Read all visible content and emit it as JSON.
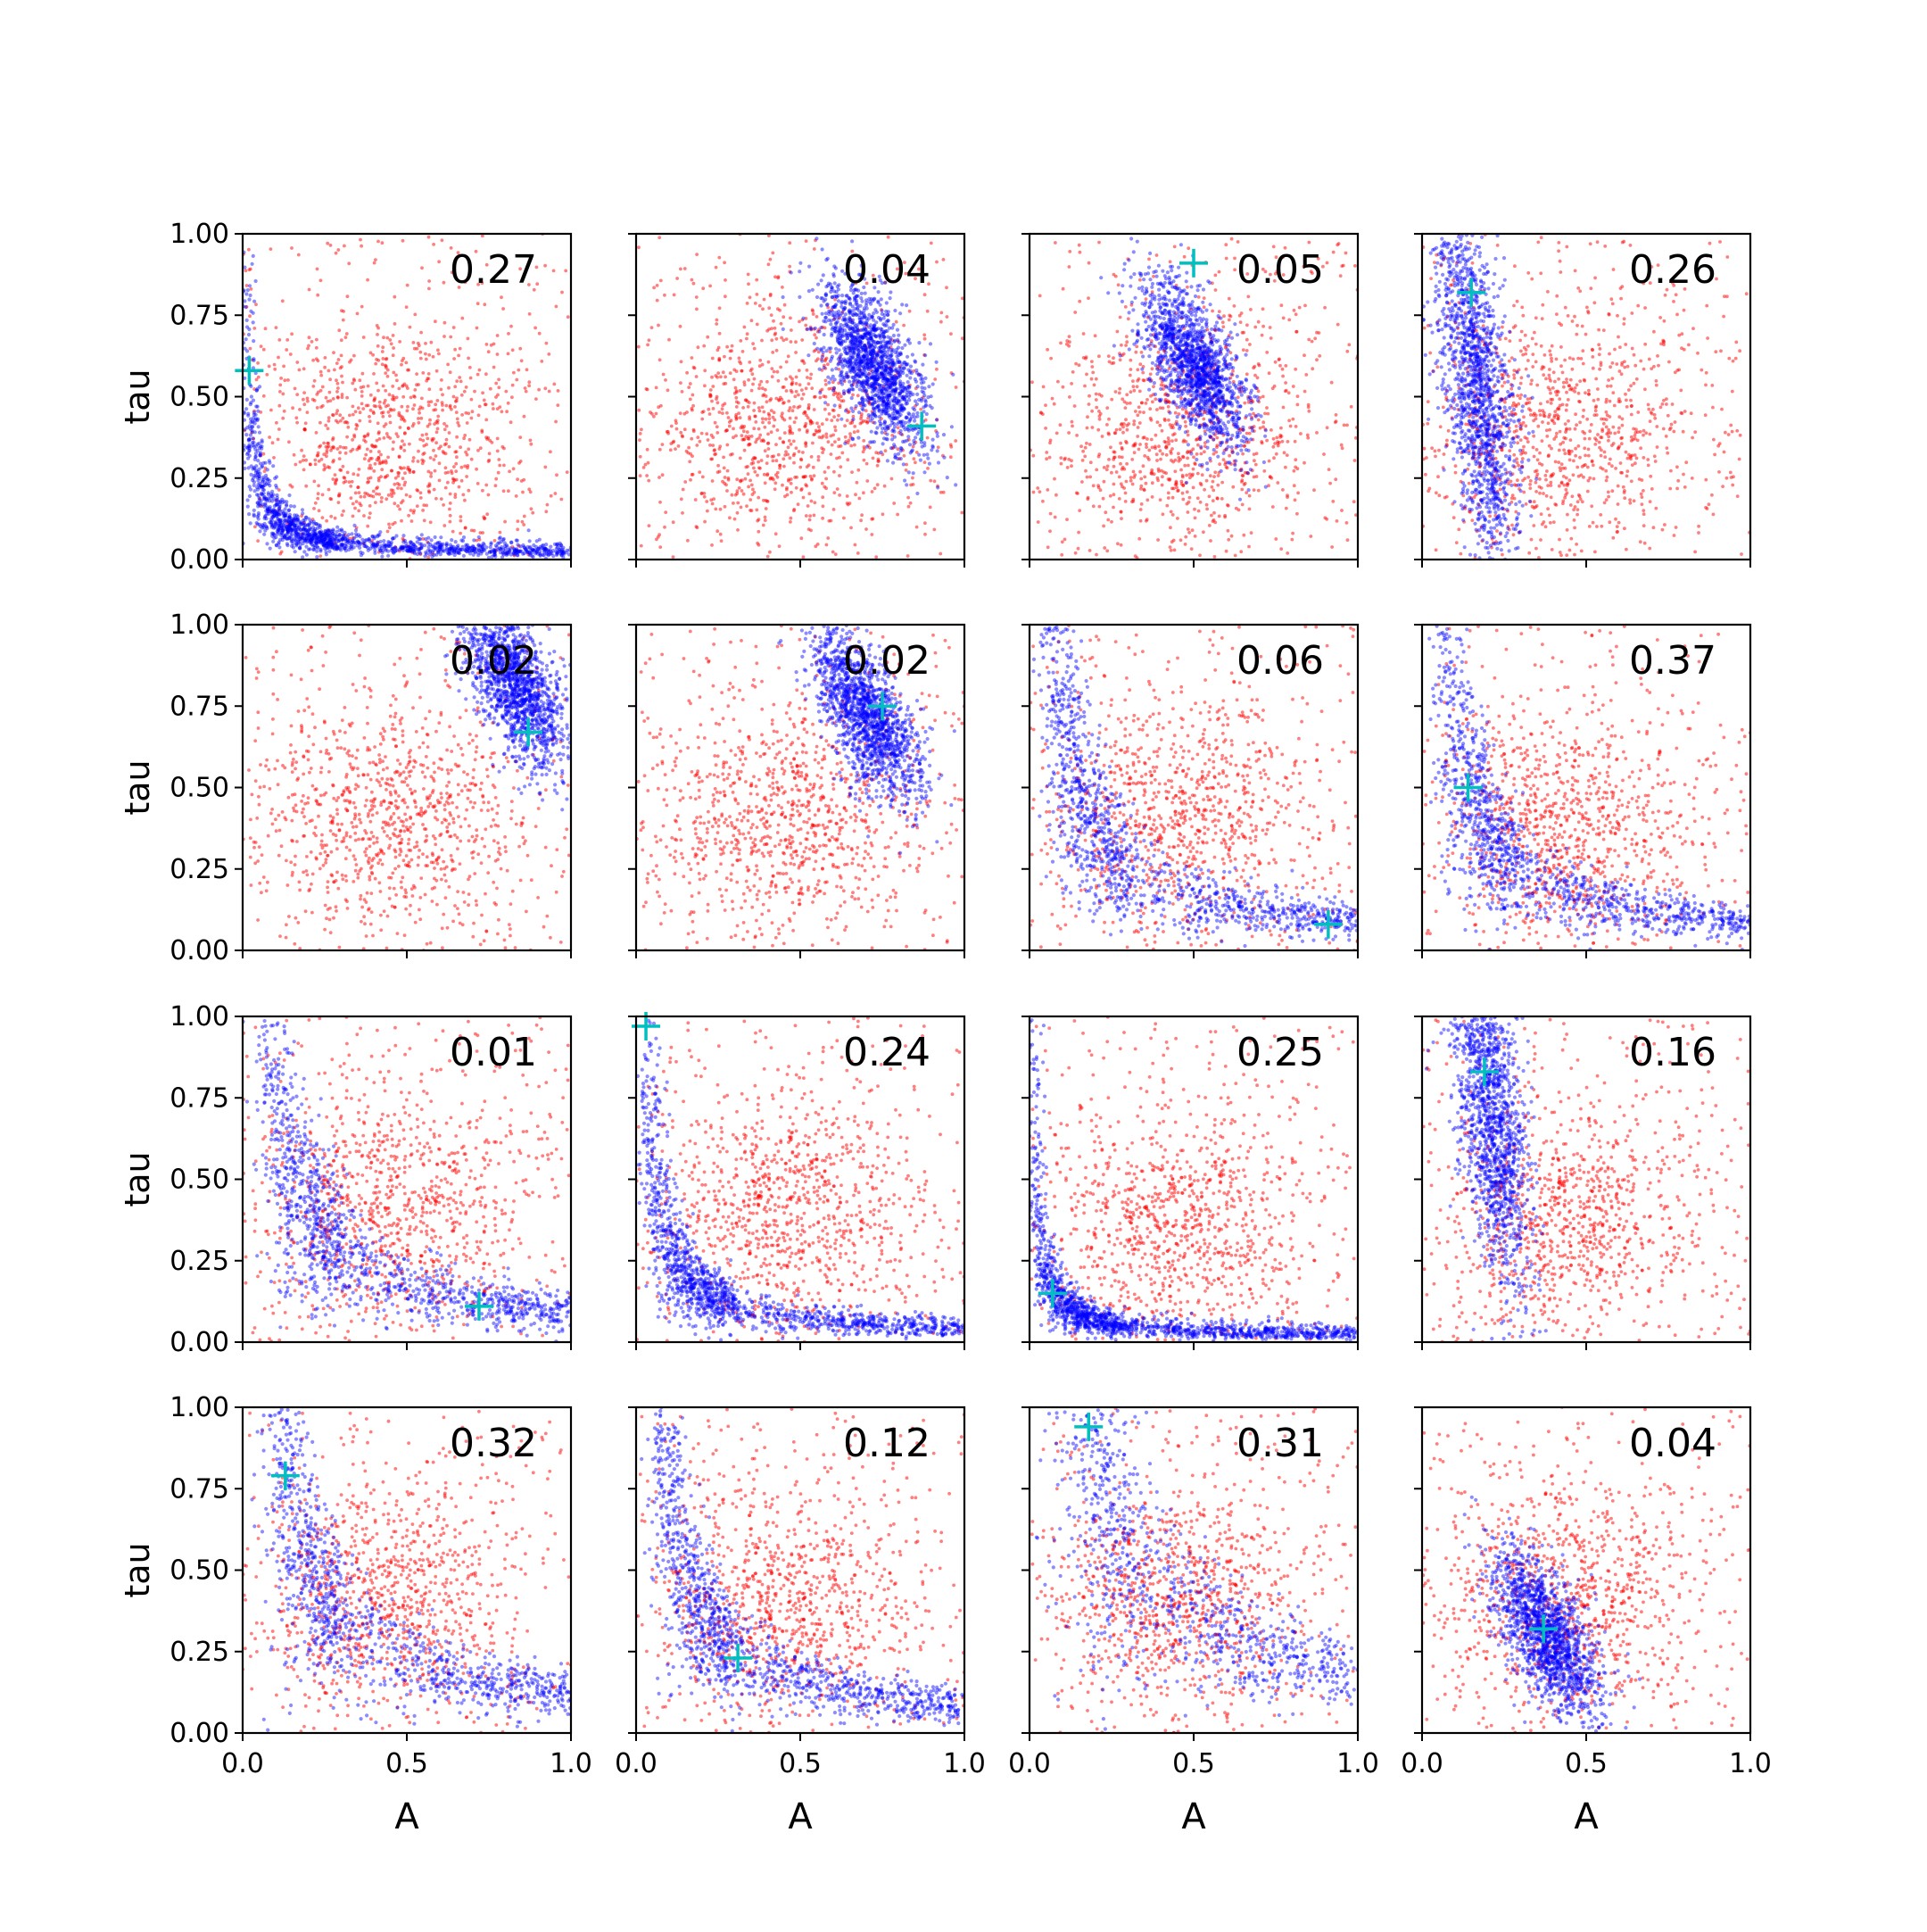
{
  "figure": {
    "rows": 4,
    "cols": 4,
    "colors": {
      "prior": "#ff0000",
      "posterior": "#0000ff",
      "truth": "#00bfbf",
      "axes": "#000000"
    }
  },
  "chart_data": [
    {
      "panel": "r1c1",
      "type": "scatter",
      "annotation": "0.27",
      "xlabel": "",
      "ylabel": "tau",
      "xlim": [
        0,
        1
      ],
      "ylim": [
        0,
        1
      ],
      "x_ticks": [],
      "y_ticks": [
        "0.00",
        "0.25",
        "0.50",
        "0.75",
        "1.00"
      ],
      "truth": [
        0.02,
        0.58
      ],
      "prior_center": [
        0.45,
        0.38
      ],
      "posterior_shape": "L-curve",
      "series": [
        {
          "color": "#ff0000",
          "role": "prior"
        },
        {
          "color": "#0000ff",
          "role": "posterior"
        }
      ]
    },
    {
      "panel": "r1c2",
      "type": "scatter",
      "annotation": "0.04",
      "xlabel": "",
      "ylabel": "",
      "xlim": [
        0,
        1
      ],
      "ylim": [
        0,
        1
      ],
      "x_ticks": [],
      "y_ticks": [],
      "truth": [
        0.87,
        0.41
      ],
      "prior_center": [
        0.45,
        0.4
      ],
      "posterior_shape": "cluster",
      "posterior_center": [
        0.72,
        0.6
      ],
      "series": [
        {
          "color": "#ff0000",
          "role": "prior"
        },
        {
          "color": "#0000ff",
          "role": "posterior"
        }
      ]
    },
    {
      "panel": "r1c3",
      "type": "scatter",
      "annotation": "0.05",
      "xlabel": "",
      "ylabel": "",
      "xlim": [
        0,
        1
      ],
      "ylim": [
        0,
        1
      ],
      "x_ticks": [],
      "y_ticks": [],
      "truth": [
        0.5,
        0.91
      ],
      "prior_center": [
        0.45,
        0.4
      ],
      "posterior_shape": "cluster",
      "posterior_center": [
        0.5,
        0.6
      ],
      "series": [
        {
          "color": "#ff0000",
          "role": "prior"
        },
        {
          "color": "#0000ff",
          "role": "posterior"
        }
      ]
    },
    {
      "panel": "r1c4",
      "type": "scatter",
      "annotation": "0.26",
      "xlabel": "",
      "ylabel": "",
      "xlim": [
        0,
        1
      ],
      "ylim": [
        0,
        1
      ],
      "x_ticks": [],
      "y_ticks": [],
      "truth": [
        0.15,
        0.82
      ],
      "prior_center": [
        0.42,
        0.38
      ],
      "posterior_shape": "vertical-band",
      "posterior_center": [
        0.14,
        0.55
      ],
      "series": [
        {
          "color": "#ff0000",
          "role": "prior"
        },
        {
          "color": "#0000ff",
          "role": "posterior"
        }
      ]
    },
    {
      "panel": "r2c1",
      "type": "scatter",
      "annotation": "0.02",
      "xlabel": "",
      "ylabel": "tau",
      "xlim": [
        0,
        1
      ],
      "ylim": [
        0,
        1
      ],
      "x_ticks": [],
      "y_ticks": [
        "0.00",
        "0.25",
        "0.50",
        "0.75",
        "1.00"
      ],
      "truth": [
        0.87,
        0.67
      ],
      "prior_center": [
        0.45,
        0.4
      ],
      "posterior_shape": "cluster",
      "posterior_center": [
        0.83,
        0.82
      ],
      "series": [
        {
          "color": "#ff0000",
          "role": "prior"
        },
        {
          "color": "#0000ff",
          "role": "posterior"
        }
      ]
    },
    {
      "panel": "r2c2",
      "type": "scatter",
      "annotation": "0.02",
      "xlabel": "",
      "ylabel": "",
      "xlim": [
        0,
        1
      ],
      "ylim": [
        0,
        1
      ],
      "x_ticks": [],
      "y_ticks": [],
      "truth": [
        0.75,
        0.75
      ],
      "prior_center": [
        0.45,
        0.4
      ],
      "posterior_shape": "cluster",
      "posterior_center": [
        0.7,
        0.72
      ],
      "series": [
        {
          "color": "#ff0000",
          "role": "prior"
        },
        {
          "color": "#0000ff",
          "role": "posterior"
        }
      ]
    },
    {
      "panel": "r2c3",
      "type": "scatter",
      "annotation": "0.06",
      "xlabel": "",
      "ylabel": "",
      "xlim": [
        0,
        1
      ],
      "ylim": [
        0,
        1
      ],
      "x_ticks": [],
      "y_ticks": [],
      "truth": [
        0.91,
        0.08
      ],
      "prior_center": [
        0.45,
        0.4
      ],
      "posterior_shape": "L-curve",
      "series": [
        {
          "color": "#ff0000",
          "role": "prior"
        },
        {
          "color": "#0000ff",
          "role": "posterior"
        }
      ]
    },
    {
      "panel": "r2c4",
      "type": "scatter",
      "annotation": "0.37",
      "xlabel": "",
      "ylabel": "",
      "xlim": [
        0,
        1
      ],
      "ylim": [
        0,
        1
      ],
      "x_ticks": [],
      "y_ticks": [],
      "truth": [
        0.14,
        0.5
      ],
      "prior_center": [
        0.42,
        0.38
      ],
      "posterior_shape": "L-curve",
      "series": [
        {
          "color": "#ff0000",
          "role": "prior"
        },
        {
          "color": "#0000ff",
          "role": "posterior"
        }
      ]
    },
    {
      "panel": "r3c1",
      "type": "scatter",
      "annotation": "0.01",
      "xlabel": "",
      "ylabel": "tau",
      "xlim": [
        0,
        1
      ],
      "ylim": [
        0,
        1
      ],
      "x_ticks": [],
      "y_ticks": [
        "0.00",
        "0.25",
        "0.50",
        "0.75",
        "1.00"
      ],
      "truth": [
        0.72,
        0.11
      ],
      "prior_center": [
        0.45,
        0.42
      ],
      "posterior_shape": "L-curve",
      "series": [
        {
          "color": "#ff0000",
          "role": "prior"
        },
        {
          "color": "#0000ff",
          "role": "posterior"
        }
      ]
    },
    {
      "panel": "r3c2",
      "type": "scatter",
      "annotation": "0.24",
      "xlabel": "",
      "ylabel": "",
      "xlim": [
        0,
        1
      ],
      "ylim": [
        0,
        1
      ],
      "x_ticks": [],
      "y_ticks": [],
      "truth": [
        0.03,
        0.97
      ],
      "prior_center": [
        0.45,
        0.4
      ],
      "posterior_shape": "L-curve",
      "series": [
        {
          "color": "#ff0000",
          "role": "prior"
        },
        {
          "color": "#0000ff",
          "role": "posterior"
        }
      ]
    },
    {
      "panel": "r3c3",
      "type": "scatter",
      "annotation": "0.25",
      "xlabel": "",
      "ylabel": "",
      "xlim": [
        0,
        1
      ],
      "ylim": [
        0,
        1
      ],
      "x_ticks": [],
      "y_ticks": [],
      "truth": [
        0.07,
        0.15
      ],
      "prior_center": [
        0.45,
        0.38
      ],
      "posterior_shape": "L-curve",
      "series": [
        {
          "color": "#ff0000",
          "role": "prior"
        },
        {
          "color": "#0000ff",
          "role": "posterior"
        }
      ]
    },
    {
      "panel": "r3c4",
      "type": "scatter",
      "annotation": "0.16",
      "xlabel": "",
      "ylabel": "",
      "xlim": [
        0,
        1
      ],
      "ylim": [
        0,
        1
      ],
      "x_ticks": [],
      "y_ticks": [],
      "truth": [
        0.19,
        0.83
      ],
      "prior_center": [
        0.42,
        0.38
      ],
      "posterior_shape": "vertical-band",
      "posterior_center": [
        0.2,
        0.7
      ],
      "series": [
        {
          "color": "#ff0000",
          "role": "prior"
        },
        {
          "color": "#0000ff",
          "role": "posterior"
        }
      ]
    },
    {
      "panel": "r4c1",
      "type": "scatter",
      "annotation": "0.32",
      "xlabel": "A",
      "ylabel": "tau",
      "xlim": [
        0,
        1
      ],
      "ylim": [
        0,
        1
      ],
      "x_ticks": [
        "0.0",
        "0.5",
        "1.0"
      ],
      "y_ticks": [
        "0.00",
        "0.25",
        "0.50",
        "0.75",
        "1.00"
      ],
      "truth": [
        0.13,
        0.79
      ],
      "prior_center": [
        0.45,
        0.42
      ],
      "posterior_shape": "L-curve",
      "series": [
        {
          "color": "#ff0000",
          "role": "prior"
        },
        {
          "color": "#0000ff",
          "role": "posterior"
        }
      ]
    },
    {
      "panel": "r4c2",
      "type": "scatter",
      "annotation": "0.12",
      "xlabel": "A",
      "ylabel": "",
      "xlim": [
        0,
        1
      ],
      "ylim": [
        0,
        1
      ],
      "x_ticks": [
        "0.0",
        "0.5",
        "1.0"
      ],
      "y_ticks": [],
      "truth": [
        0.31,
        0.23
      ],
      "prior_center": [
        0.45,
        0.4
      ],
      "posterior_shape": "L-curve",
      "series": [
        {
          "color": "#ff0000",
          "role": "prior"
        },
        {
          "color": "#0000ff",
          "role": "posterior"
        }
      ]
    },
    {
      "panel": "r4c3",
      "type": "scatter",
      "annotation": "0.31",
      "xlabel": "A",
      "ylabel": "",
      "xlim": [
        0,
        1
      ],
      "ylim": [
        0,
        1
      ],
      "x_ticks": [
        "0.0",
        "0.5",
        "1.0"
      ],
      "y_ticks": [],
      "truth": [
        0.18,
        0.94
      ],
      "prior_center": [
        0.45,
        0.42
      ],
      "posterior_shape": "L-curve",
      "series": [
        {
          "color": "#ff0000",
          "role": "prior"
        },
        {
          "color": "#0000ff",
          "role": "posterior"
        }
      ]
    },
    {
      "panel": "r4c4",
      "type": "scatter",
      "annotation": "0.04",
      "xlabel": "A",
      "ylabel": "",
      "xlim": [
        0,
        1
      ],
      "ylim": [
        0,
        1
      ],
      "x_ticks": [
        "0.0",
        "0.5",
        "1.0"
      ],
      "y_ticks": [],
      "truth": [
        0.37,
        0.32
      ],
      "prior_center": [
        0.45,
        0.4
      ],
      "posterior_shape": "cluster",
      "posterior_center": [
        0.38,
        0.3
      ],
      "series": [
        {
          "color": "#ff0000",
          "role": "prior"
        },
        {
          "color": "#0000ff",
          "role": "posterior"
        }
      ]
    }
  ]
}
